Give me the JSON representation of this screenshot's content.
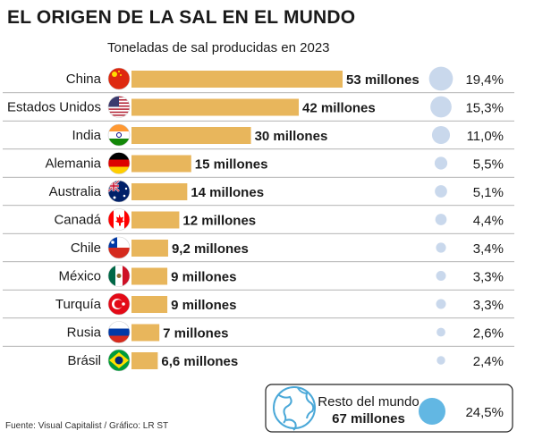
{
  "chart_data": {
    "type": "bar",
    "title": "EL ORIGEN DE LA SAL EN EL MUNDO",
    "subtitle": "Toneladas de sal producidas en 2023",
    "unit": "millones",
    "categories": [
      "China",
      "Estados Unidos",
      "India",
      "Alemania",
      "Australia",
      "Canadá",
      "Chile",
      "México",
      "Turquía",
      "Rusia",
      "Brásil"
    ],
    "values": [
      53,
      42,
      30,
      15,
      14,
      12,
      9.2,
      9,
      9,
      7,
      6.6
    ],
    "value_labels": [
      "53 millones",
      "42 millones",
      "30 millones",
      "15 millones",
      "14 millones",
      "12 millones",
      "9,2 millones",
      "9 millones",
      "9 millones",
      "7 millones",
      "6,6 millones"
    ],
    "shares": [
      19.4,
      15.3,
      11.0,
      5.5,
      5.1,
      4.4,
      3.4,
      3.3,
      3.3,
      2.6,
      2.4
    ],
    "share_labels": [
      "19,4%",
      "15,3%",
      "11,0%",
      "5,5%",
      "5,1%",
      "4,4%",
      "3,4%",
      "3,3%",
      "3,3%",
      "2,6%",
      "2,4%"
    ],
    "flag_icons": [
      "china-flag-icon",
      "usa-flag-icon",
      "india-flag-icon",
      "germany-flag-icon",
      "australia-flag-icon",
      "canada-flag-icon",
      "chile-flag-icon",
      "mexico-flag-icon",
      "turkey-flag-icon",
      "russia-flag-icon",
      "brazil-flag-icon"
    ],
    "rest_of_world": {
      "label": "Resto del mundo",
      "value_label": "67 millones",
      "share": 24.5,
      "share_label": "24,5%",
      "icon": "globe-icon"
    },
    "colors": {
      "bar": "#e8b65c",
      "bubble": "#c9d8ec",
      "rest_bubble": "#62b7e3",
      "globe": "#4aa8d8",
      "divider": "#9a9a9a"
    }
  },
  "footer": "Fuente: Visual Capitalist / Gráfico: LR ST"
}
